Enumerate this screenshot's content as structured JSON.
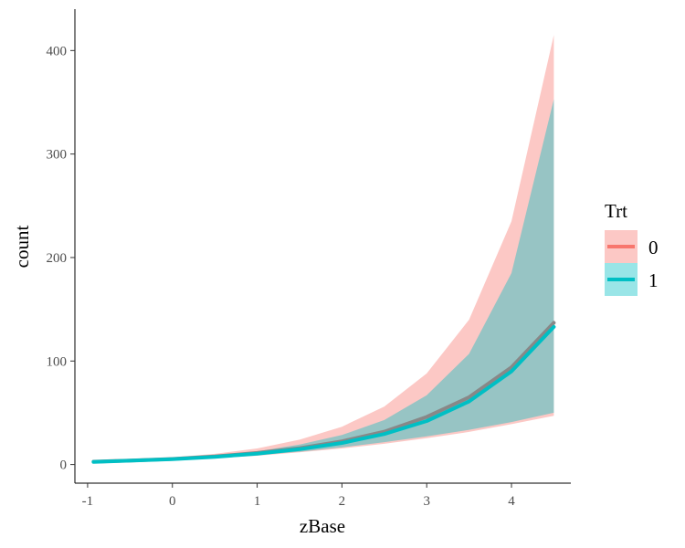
{
  "chart_data": {
    "type": "line",
    "xlabel": "zBase",
    "ylabel": "count",
    "xlim": [
      -1.15,
      4.7
    ],
    "ylim": [
      -18,
      440
    ],
    "x_ticks": [
      -1,
      0,
      1,
      2,
      3,
      4
    ],
    "x_tick_labels": [
      "-1",
      "0",
      "1",
      "2",
      "3",
      "4"
    ],
    "y_ticks": [
      0,
      100,
      200,
      300,
      400
    ],
    "y_tick_labels": [
      "0",
      "100",
      "200",
      "300",
      "400"
    ],
    "grid": false,
    "legend": {
      "title": "Trt",
      "position": "right"
    },
    "x": [
      -0.93,
      -0.5,
      0,
      0.5,
      1,
      1.5,
      2,
      2.5,
      3,
      3.5,
      4,
      4.5
    ],
    "series": [
      {
        "name": "0",
        "color": "#F8766D",
        "line_color": "#888888",
        "fill_color": "#F8766D",
        "fit": [
          2.7,
          3.9,
          5.4,
          7.8,
          11.2,
          15.8,
          22.4,
          31.8,
          46,
          65,
          94,
          137
        ],
        "lower": [
          2.1,
          3.0,
          4.3,
          6.1,
          8.5,
          11.8,
          15.5,
          20,
          25.5,
          31.5,
          39,
          47
        ],
        "upper": [
          3.4,
          5.0,
          6.9,
          10.3,
          15.5,
          24,
          36.5,
          56,
          88,
          140,
          235,
          415
        ]
      },
      {
        "name": "1",
        "color": "#00BFC4",
        "line_color": "#00BFC4",
        "fill_color": "#00BFC4",
        "fit": [
          2.6,
          3.7,
          5.2,
          7.4,
          10.5,
          14.8,
          20.8,
          29.5,
          42,
          61,
          90,
          133
        ],
        "lower": [
          2.2,
          3.2,
          4.5,
          6.4,
          9.0,
          12.4,
          16.6,
          21.6,
          27.2,
          33.5,
          41,
          50
        ],
        "upper": [
          3.1,
          4.4,
          6.1,
          8.7,
          12.8,
          19.2,
          28.5,
          43,
          67,
          107,
          185,
          353
        ]
      }
    ]
  }
}
